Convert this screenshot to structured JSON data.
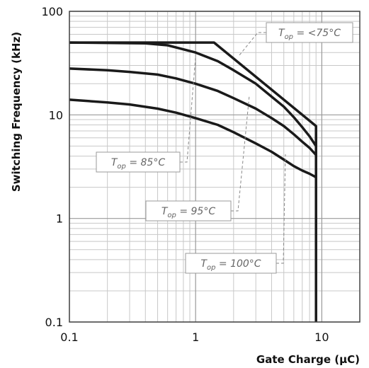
{
  "chart_data": {
    "type": "line",
    "xlabel": "Gate Charge (µC)",
    "ylabel": "Switching Frequency (kHz)",
    "x_scale": "log",
    "y_scale": "log",
    "xlim": [
      0.1,
      20
    ],
    "ylim": [
      0.1,
      100
    ],
    "grid": true,
    "x_ticks": [
      "0.1",
      "1",
      "10"
    ],
    "y_ticks": [
      "0.1",
      "1",
      "10",
      "100"
    ],
    "series": [
      {
        "name": "T_op = <75°C",
        "points": [
          [
            0.1,
            50
          ],
          [
            1.4,
            50
          ],
          [
            9,
            7.8
          ],
          [
            9,
            0.1
          ]
        ]
      },
      {
        "name": "T_op = 85°C",
        "points": [
          [
            0.1,
            50
          ],
          [
            0.4,
            49
          ],
          [
            0.6,
            47
          ],
          [
            1,
            40
          ],
          [
            1.5,
            33
          ],
          [
            2,
            27
          ],
          [
            3,
            20
          ],
          [
            4,
            15
          ],
          [
            5,
            12
          ],
          [
            6,
            9.5
          ],
          [
            7,
            7.6
          ],
          [
            8,
            6.2
          ],
          [
            9,
            5
          ]
        ]
      },
      {
        "name": "T_op = 95°C",
        "points": [
          [
            0.1,
            28
          ],
          [
            0.2,
            27
          ],
          [
            0.3,
            26
          ],
          [
            0.5,
            24.5
          ],
          [
            0.7,
            22.5
          ],
          [
            1,
            20
          ],
          [
            1.5,
            17
          ],
          [
            2,
            14.5
          ],
          [
            3,
            11.5
          ],
          [
            4,
            9.3
          ],
          [
            5,
            7.8
          ],
          [
            6,
            6.5
          ],
          [
            7,
            5.5
          ],
          [
            8,
            4.8
          ],
          [
            9,
            4.1
          ]
        ]
      },
      {
        "name": "T_op = 100°C",
        "points": [
          [
            0.1,
            14
          ],
          [
            0.2,
            13.2
          ],
          [
            0.3,
            12.6
          ],
          [
            0.5,
            11.5
          ],
          [
            0.7,
            10.5
          ],
          [
            1,
            9.3
          ],
          [
            1.5,
            8
          ],
          [
            2,
            6.8
          ],
          [
            3,
            5.3
          ],
          [
            4,
            4.4
          ],
          [
            5,
            3.7
          ],
          [
            6,
            3.2
          ],
          [
            7,
            2.9
          ],
          [
            8,
            2.7
          ],
          [
            9,
            2.5
          ]
        ]
      }
    ],
    "annotations": [
      {
        "base": "T",
        "sub": "op",
        "rest": " = <75°C",
        "series_index": 0
      },
      {
        "base": "T",
        "sub": "op",
        "rest": " = 85°C",
        "series_index": 1
      },
      {
        "base": "T",
        "sub": "op",
        "rest": " = 95°C",
        "series_index": 2
      },
      {
        "base": "T",
        "sub": "op",
        "rest": " = 100°C",
        "series_index": 3
      }
    ]
  }
}
